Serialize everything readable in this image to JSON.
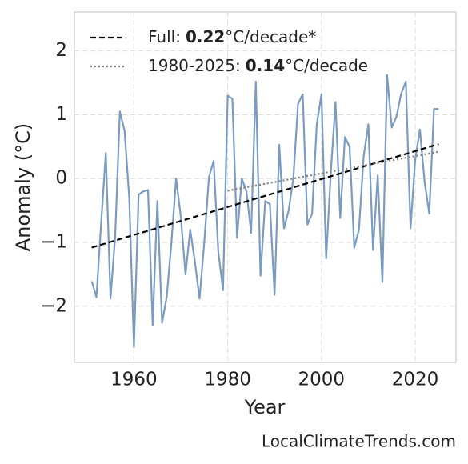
{
  "chart_data": {
    "type": "line",
    "x_label": "Year",
    "y_label": "Anomaly (°C)",
    "source": "LocalClimateTrends.com",
    "xlim": [
      1947.3,
      2028.7
    ],
    "ylim": [
      -2.88,
      2.61
    ],
    "xticks": [
      1960,
      1980,
      2000,
      2020
    ],
    "yticks": [
      {
        "value": -2,
        "label": "−2"
      },
      {
        "value": -1,
        "label": "−1"
      },
      0,
      1,
      2
    ],
    "grid": true,
    "legend_position": "upper left",
    "x": [
      1951,
      1952,
      1953,
      1954,
      1955,
      1956,
      1957,
      1958,
      1959,
      1960,
      1961,
      1962,
      1963,
      1964,
      1965,
      1966,
      1967,
      1968,
      1969,
      1970,
      1971,
      1972,
      1973,
      1974,
      1975,
      1976,
      1977,
      1978,
      1979,
      1980,
      1981,
      1982,
      1983,
      1984,
      1985,
      1986,
      1987,
      1988,
      1989,
      1990,
      1991,
      1992,
      1993,
      1994,
      1995,
      1996,
      1997,
      1998,
      1999,
      2000,
      2001,
      2002,
      2003,
      2004,
      2005,
      2006,
      2007,
      2008,
      2009,
      2010,
      2011,
      2012,
      2013,
      2014,
      2015,
      2016,
      2017,
      2018,
      2019,
      2020,
      2021,
      2022,
      2023,
      2024,
      2025
    ],
    "series": [
      {
        "color": "#7b9cc0",
        "values": [
          -1.61,
          -1.86,
          -0.7,
          0.4,
          -1.88,
          -0.9,
          1.05,
          0.75,
          -0.3,
          -2.64,
          -0.25,
          -0.2,
          -0.18,
          -2.3,
          -0.35,
          -2.26,
          -1.85,
          -1.0,
          0.0,
          -0.6,
          -1.5,
          -0.8,
          -1.3,
          -1.88,
          -1.0,
          0.02,
          0.28,
          -1.15,
          -1.75,
          1.3,
          1.25,
          -0.93,
          0.0,
          -0.2,
          -0.85,
          1.52,
          -1.52,
          -0.35,
          -0.4,
          -1.82,
          0.53,
          -0.78,
          -0.5,
          0.0,
          1.17,
          1.32,
          -0.72,
          -0.55,
          0.85,
          1.32,
          -1.25,
          0.1,
          1.2,
          -0.62,
          0.65,
          0.5,
          -1.08,
          -0.8,
          0.35,
          0.85,
          -1.12,
          0.05,
          -1.62,
          1.62,
          0.8,
          0.97,
          1.33,
          1.52,
          -0.78,
          0.3,
          0.77,
          -0.05,
          -0.55,
          1.09,
          1.09
        ]
      },
      {
        "name": "Full:",
        "rate": 0.22,
        "unit": "°C/decade*",
        "color": "#000000",
        "style": "dashed",
        "x": [
          1951,
          2025
        ],
        "values": [
          -1.08,
          0.54
        ]
      },
      {
        "name": "1980-2025:",
        "rate": 0.14,
        "unit": "°C/decade",
        "color": "#808080",
        "style": "dotted",
        "x": [
          1980,
          2025
        ],
        "values": [
          -0.19,
          0.42
        ]
      }
    ]
  }
}
